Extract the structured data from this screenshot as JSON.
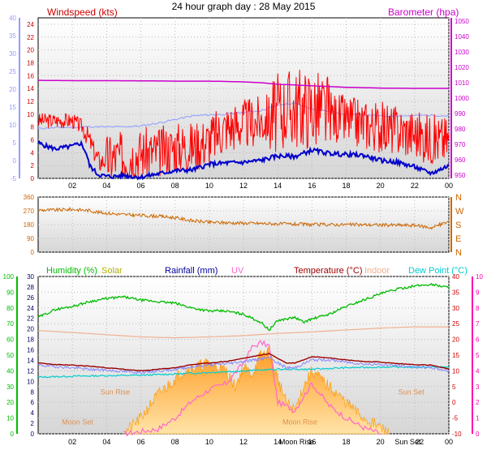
{
  "title": "24 hour graph day : 28 May 2015",
  "colors": {
    "wind": "#ff0000",
    "wind_avg": "#0000cc",
    "temp_ghost": "#9aa6ff",
    "barometer": "#cc00cc",
    "direction": "#cc6600",
    "humidity": "#00bb00",
    "solar": "#ff9900",
    "rainfall": "#000099",
    "uv": "#ff66cc",
    "temperature": "#990000",
    "indoor": "#f0b090",
    "dewpoint": "#00cccc",
    "axis_blue": "#9999ff",
    "axis_green": "#00bb00",
    "axis_pink": "#ff00aa",
    "axis_brown": "#cc6600"
  },
  "x_ticks": [
    "02",
    "04",
    "06",
    "08",
    "10",
    "12",
    "14",
    "16",
    "18",
    "20",
    "22",
    "00"
  ],
  "bottom_x_ticks": [
    "02",
    "04",
    "06",
    "08",
    "10",
    "12",
    "14",
    "Moon Rise",
    "16",
    "18",
    "20",
    "Sun Set",
    "22",
    "00"
  ],
  "chart_data": [
    {
      "type": "line",
      "title": "",
      "legend": {
        "left": "Windspeed (kts)",
        "right": "Barometer (hpa)"
      },
      "x_range_hours": [
        0,
        24
      ],
      "y_left_ticks": [
        "24",
        "22",
        "20",
        "18",
        "16",
        "14",
        "12",
        "10",
        "8",
        "6",
        "4",
        "2",
        "0"
      ],
      "y_left_range": [
        0,
        25
      ],
      "y_outer_ticks": [
        "40",
        "35",
        "30",
        "25",
        "20",
        "15",
        "10",
        "5",
        "0",
        "-5"
      ],
      "y_outer_range": [
        -5,
        40
      ],
      "y_right_ticks": [
        "1050",
        "1040",
        "1030",
        "1020",
        "1010",
        "1000",
        "990",
        "980",
        "970",
        "960",
        "950"
      ],
      "y_right_range": [
        948,
        1052
      ],
      "series": [
        {
          "key": "gust",
          "hours": [
            0,
            2,
            2.6,
            3,
            3.3,
            3.6,
            4,
            5,
            6,
            7,
            8,
            9,
            10,
            11,
            12,
            13,
            14,
            14.5,
            15,
            16,
            17,
            18,
            19,
            20,
            21,
            22,
            23,
            24
          ],
          "values": [
            9,
            9,
            8,
            6,
            4,
            2.5,
            3,
            3.5,
            4,
            4,
            5,
            5,
            6,
            8,
            8.5,
            9,
            10,
            11,
            11,
            11,
            10,
            9,
            8.5,
            8,
            7.5,
            7,
            6,
            6
          ]
        },
        {
          "key": "avg",
          "hours": [
            0,
            0.5,
            1,
            1.5,
            2,
            2.5,
            2.8,
            3,
            3.5,
            4,
            4.5,
            5,
            5.5,
            6,
            7,
            8,
            9,
            10,
            11,
            12,
            13,
            14,
            15,
            16,
            17,
            18,
            19,
            20,
            21,
            22,
            22.5,
            23,
            24
          ],
          "values": [
            5.5,
            5,
            4.6,
            4.8,
            5,
            5.5,
            4,
            2,
            0.6,
            0.3,
            0.3,
            0.5,
            0.3,
            0.2,
            0.7,
            1.2,
            1.3,
            2.2,
            2.4,
            2.5,
            2.8,
            3.5,
            3.4,
            4.4,
            3.9,
            3.7,
            3.6,
            2.8,
            2.5,
            1.8,
            1.2,
            0.8,
            2
          ]
        },
        {
          "key": "temp_ghost",
          "hours": [
            0,
            1,
            2,
            3,
            4,
            5,
            6,
            7,
            8,
            9,
            10,
            11,
            12,
            13,
            14,
            14.5,
            15,
            16,
            17,
            18,
            19,
            20,
            21,
            22,
            23,
            24
          ],
          "values": [
            9,
            9.2,
            9.3,
            9.5,
            9.4,
            9.5,
            9.7,
            10.5,
            11.5,
            12.5,
            12.8,
            13,
            13.5,
            14,
            15.5,
            15.8,
            16,
            14.5,
            13.8,
            13,
            12.8,
            12.5,
            12.5,
            12.6,
            12.7,
            12.5
          ]
        },
        {
          "key": "barometer",
          "hours": [
            0,
            2,
            4,
            6,
            8,
            10,
            12,
            13,
            14,
            15,
            16,
            17,
            18,
            19,
            20,
            22,
            24
          ],
          "values": [
            1011.5,
            1011.3,
            1011.3,
            1011.2,
            1011,
            1011,
            1010.5,
            1010,
            1009,
            1008.5,
            1008,
            1007.5,
            1007,
            1006.8,
            1006.5,
            1006.3,
            1006.3
          ]
        }
      ]
    },
    {
      "type": "line",
      "title": "",
      "y_left_ticks": [
        "360",
        "270",
        "180",
        "90",
        "0"
      ],
      "y_left_range": [
        0,
        360
      ],
      "compass_labels": [
        "N",
        "W",
        "S",
        "E",
        "N"
      ],
      "series": [
        {
          "key": "direction",
          "hours": [
            0,
            1,
            2,
            3,
            3.5,
            4,
            5,
            6,
            7,
            8,
            9,
            10,
            12,
            14,
            16,
            18,
            20,
            22,
            23,
            24
          ],
          "values": [
            275,
            275,
            280,
            272,
            260,
            255,
            245,
            240,
            235,
            225,
            205,
            195,
            190,
            185,
            180,
            180,
            178,
            175,
            160,
            200
          ]
        }
      ]
    },
    {
      "type": "line",
      "title": "",
      "legend": [
        "Humidity (%)",
        "Solar",
        "Rainfall (mm)",
        "UV",
        "Temperature (°C)",
        "Indoor",
        "Dew Point (°C)"
      ],
      "y_humidity_ticks": [
        "100",
        "90",
        "80",
        "70",
        "60",
        "50",
        "40",
        "30",
        "20",
        "10",
        "0"
      ],
      "y_humidity_range": [
        0,
        100
      ],
      "y_rain_ticks": [
        "30",
        "28",
        "26",
        "24",
        "22",
        "20",
        "18",
        "16",
        "14",
        "12",
        "10",
        "8",
        "6",
        "4",
        "2",
        "0"
      ],
      "y_rain_range": [
        0,
        30
      ],
      "y_temp_ticks": [
        "40",
        "35",
        "30",
        "25",
        "20",
        "15",
        "10",
        "5",
        "0",
        "-5",
        "-10"
      ],
      "y_temp_range": [
        -10,
        40
      ],
      "y_uv_ticks": [
        "10",
        "9",
        "8",
        "7",
        "6",
        "5",
        "4",
        "3",
        "2",
        "1",
        "0"
      ],
      "y_uv_range": [
        0,
        10
      ],
      "annotations": [
        {
          "label": "Moon Set",
          "hour": 2.3,
          "value_c": -7
        },
        {
          "label": "Sun Rise",
          "hour": 4.5,
          "value_c": 2.5
        },
        {
          "label": "Moon Rise",
          "hour": 15.3,
          "value_c": -7
        },
        {
          "label": "Sun Set",
          "hour": 21.8,
          "value_c": 2.5
        }
      ],
      "series": [
        {
          "key": "humidity",
          "hours": [
            0,
            1,
            2,
            3,
            4,
            5,
            6,
            7,
            8,
            9,
            10,
            11,
            12,
            13,
            13.5,
            14,
            15,
            15.5,
            16,
            17,
            18,
            19,
            20,
            21,
            22,
            23,
            24
          ],
          "values": [
            74,
            79,
            81,
            84,
            86,
            87,
            85,
            84,
            83,
            80,
            78,
            78,
            76,
            71,
            66,
            72,
            74,
            71,
            73,
            76,
            81,
            85,
            89,
            92,
            94,
            95,
            93
          ]
        },
        {
          "key": "solar_pct",
          "hours": [
            5,
            6,
            7,
            8,
            8.5,
            9,
            10,
            11,
            11.5,
            12,
            12.5,
            13,
            13.5,
            14,
            14.5,
            15,
            15.5,
            16,
            16.5,
            17,
            18,
            19,
            20,
            20.5
          ],
          "values": [
            0,
            10,
            25,
            35,
            40,
            42,
            45,
            40,
            30,
            42,
            38,
            50,
            52,
            35,
            20,
            15,
            30,
            40,
            35,
            30,
            20,
            10,
            4,
            0
          ]
        },
        {
          "key": "uv",
          "hours": [
            5,
            7,
            8,
            9,
            10,
            11,
            12,
            12.5,
            13,
            13.5,
            14,
            15,
            16,
            17,
            18,
            19,
            20
          ],
          "values": [
            0,
            0.3,
            1,
            2.1,
            2.8,
            3.2,
            4.5,
            5.5,
            5.8,
            5.6,
            2,
            1.5,
            3.2,
            1.8,
            1,
            0.4,
            0
          ]
        },
        {
          "key": "temperature",
          "hours": [
            0,
            1,
            2,
            3,
            4,
            5,
            6,
            7,
            8,
            9,
            10,
            11,
            12,
            13,
            13.5,
            14,
            14.5,
            15,
            16,
            17,
            18,
            19,
            20,
            21,
            22,
            23,
            24
          ],
          "values": [
            12.5,
            12,
            11.8,
            11.5,
            11,
            10.5,
            10,
            10.5,
            11,
            12,
            12.5,
            13,
            14,
            15,
            15.5,
            14,
            12.5,
            12.5,
            14.5,
            14.2,
            13.5,
            13,
            12.8,
            12.3,
            12,
            11.8,
            10.5
          ]
        },
        {
          "key": "temp_noisy",
          "hours": [
            0,
            1,
            2,
            3,
            4,
            5,
            6,
            7,
            8,
            9,
            10,
            11,
            12,
            13,
            13.5,
            14,
            14.5,
            15,
            16,
            17,
            18,
            19,
            20,
            21,
            22,
            23,
            24
          ],
          "values": [
            11.8,
            11.4,
            11,
            10.5,
            10.2,
            9.8,
            9.5,
            10,
            10.5,
            11.3,
            11.9,
            12.3,
            13,
            13.8,
            14.2,
            12.5,
            11,
            11,
            13.5,
            13.5,
            12.8,
            12.2,
            12,
            11.7,
            11.2,
            11,
            10
          ]
        },
        {
          "key": "indoor",
          "hours": [
            0,
            2,
            4,
            6,
            8,
            10,
            12,
            14,
            16,
            18,
            20,
            22,
            24
          ],
          "values": [
            22.8,
            22.2,
            21.5,
            20.8,
            20.5,
            20.8,
            21.2,
            21.9,
            22.4,
            23,
            23.6,
            24,
            24
          ]
        },
        {
          "key": "dewpoint",
          "hours": [
            0,
            2,
            4,
            6,
            8,
            10,
            12,
            14,
            16,
            18,
            20,
            22,
            24
          ],
          "values": [
            8,
            8.3,
            8.5,
            8.6,
            9,
            9.5,
            10,
            10.5,
            10.5,
            11,
            11.2,
            11.2,
            11.2
          ]
        }
      ]
    }
  ]
}
